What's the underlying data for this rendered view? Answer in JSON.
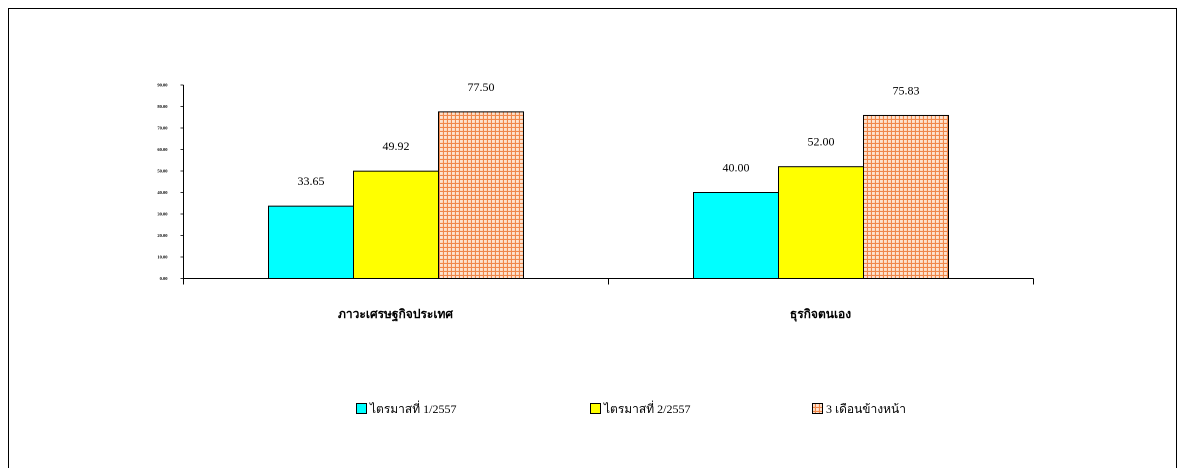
{
  "chart_data": {
    "type": "bar",
    "categories": [
      "ภาวะเศรษฐกิจประเทศ",
      "ธุรกิจตนเอง"
    ],
    "series": [
      {
        "name": "ไตรมาสที่ 1/2557",
        "values": [
          33.65,
          40.0
        ],
        "labels": [
          "33.65",
          "40.00"
        ],
        "color": "#00FFFF",
        "fill_style": "solid"
      },
      {
        "name": "ไตรมาสที่ 2/2557",
        "values": [
          49.92,
          52.0
        ],
        "labels": [
          "49.92",
          "52.00"
        ],
        "color": "#FFFF00",
        "fill_style": "solid"
      },
      {
        "name": "3 เดือนข้างหน้า",
        "values": [
          77.5,
          75.83
        ],
        "labels": [
          "77.50",
          "75.83"
        ],
        "color": "#F0874A",
        "fill_style": "grid-hatch"
      }
    ],
    "ylim": [
      0,
      90
    ],
    "yticks": [
      "0.00",
      "10.00",
      "20.00",
      "30.00",
      "40.00",
      "50.00",
      "60.00",
      "70.00",
      "80.00",
      "90.00"
    ],
    "grid": false,
    "legend": "bottom"
  }
}
